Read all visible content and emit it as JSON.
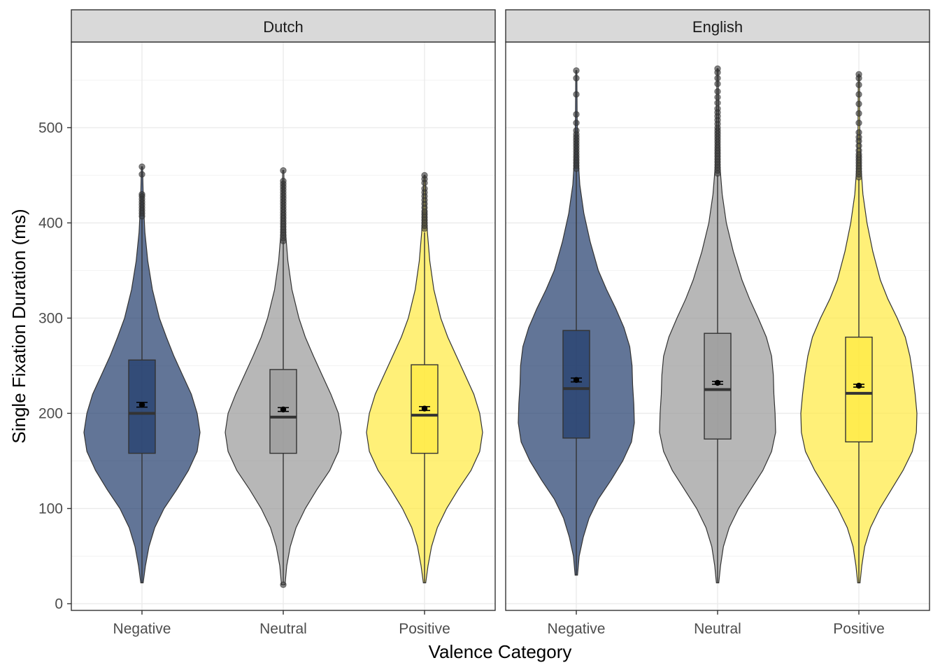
{
  "chart_data": {
    "type": "violin",
    "xlabel": "Valence Category",
    "ylabel": "Single Fixation Duration (ms)",
    "ylim": [
      -7,
      590
    ],
    "yticks": [
      0,
      100,
      200,
      300,
      400,
      500
    ],
    "grid": true,
    "categories": [
      "Negative",
      "Neutral",
      "Positive"
    ],
    "colors": {
      "Negative": "#1f3b6b",
      "Neutral": "#999999",
      "Positive": "#ffe93f"
    },
    "panels": [
      {
        "name": "Dutch",
        "groups": [
          {
            "category": "Negative",
            "min": 22,
            "q1": 158,
            "median": 200,
            "q3": 256,
            "whisker_high": 405,
            "mean": 209,
            "se": 2.5,
            "outliers": [
              407,
              410,
              413,
              416,
              419,
              422,
              425,
              428,
              430,
              451,
              459
            ],
            "violin": [
              [
                22,
                0.02
              ],
              [
                40,
                0.06
              ],
              [
                60,
                0.12
              ],
              [
                80,
                0.22
              ],
              [
                100,
                0.38
              ],
              [
                120,
                0.6
              ],
              [
                140,
                0.8
              ],
              [
                160,
                0.95
              ],
              [
                180,
                1.0
              ],
              [
                200,
                0.95
              ],
              [
                220,
                0.85
              ],
              [
                240,
                0.7
              ],
              [
                260,
                0.55
              ],
              [
                280,
                0.42
              ],
              [
                300,
                0.3
              ],
              [
                330,
                0.18
              ],
              [
                360,
                0.1
              ],
              [
                390,
                0.05
              ],
              [
                420,
                0.025
              ],
              [
                459,
                0.01
              ]
            ]
          },
          {
            "category": "Neutral",
            "min": 22,
            "q1": 158,
            "median": 196,
            "q3": 246,
            "whisker_high": 380,
            "mean": 204,
            "se": 2.0,
            "outliers": [
              20,
              381,
              384,
              387,
              390,
              393,
              396,
              399,
              402,
              405,
              408,
              411,
              414,
              417,
              420,
              423,
              426,
              429,
              432,
              435,
              438,
              441,
              444,
              455
            ],
            "violin": [
              [
                20,
                0.03
              ],
              [
                40,
                0.06
              ],
              [
                60,
                0.12
              ],
              [
                80,
                0.22
              ],
              [
                100,
                0.38
              ],
              [
                120,
                0.58
              ],
              [
                140,
                0.8
              ],
              [
                160,
                0.95
              ],
              [
                180,
                1.0
              ],
              [
                200,
                0.95
              ],
              [
                220,
                0.82
              ],
              [
                240,
                0.67
              ],
              [
                260,
                0.52
              ],
              [
                280,
                0.38
              ],
              [
                300,
                0.27
              ],
              [
                330,
                0.15
              ],
              [
                360,
                0.08
              ],
              [
                390,
                0.04
              ],
              [
                420,
                0.02
              ],
              [
                455,
                0.01
              ]
            ]
          },
          {
            "category": "Positive",
            "min": 22,
            "q1": 158,
            "median": 198,
            "q3": 251,
            "whisker_high": 390,
            "mean": 205,
            "se": 2.0,
            "outliers": [
              394,
              397,
              400,
              403,
              406,
              409,
              412,
              416,
              420,
              424,
              428,
              432,
              436,
              442,
              446,
              450
            ],
            "violin": [
              [
                22,
                0.02
              ],
              [
                40,
                0.06
              ],
              [
                60,
                0.12
              ],
              [
                80,
                0.22
              ],
              [
                100,
                0.38
              ],
              [
                120,
                0.58
              ],
              [
                140,
                0.8
              ],
              [
                160,
                0.95
              ],
              [
                180,
                1.0
              ],
              [
                200,
                0.95
              ],
              [
                220,
                0.85
              ],
              [
                240,
                0.7
              ],
              [
                260,
                0.55
              ],
              [
                280,
                0.4
              ],
              [
                300,
                0.28
              ],
              [
                330,
                0.16
              ],
              [
                360,
                0.09
              ],
              [
                390,
                0.05
              ],
              [
                420,
                0.025
              ],
              [
                450,
                0.01
              ]
            ]
          }
        ]
      },
      {
        "name": "English",
        "groups": [
          {
            "category": "Negative",
            "min": 30,
            "q1": 174,
            "median": 226,
            "q3": 287,
            "whisker_high": 455,
            "mean": 235,
            "se": 2.0,
            "outliers": [
              457,
              460,
              463,
              466,
              469,
              472,
              475,
              478,
              481,
              484,
              487,
              490,
              493,
              497,
              505,
              514,
              535,
              552,
              560
            ],
            "violin": [
              [
                30,
                0.02
              ],
              [
                50,
                0.05
              ],
              [
                70,
                0.12
              ],
              [
                90,
                0.22
              ],
              [
                110,
                0.38
              ],
              [
                130,
                0.6
              ],
              [
                150,
                0.8
              ],
              [
                170,
                0.95
              ],
              [
                190,
                1.0
              ],
              [
                210,
                0.99
              ],
              [
                230,
                0.97
              ],
              [
                250,
                0.96
              ],
              [
                270,
                0.92
              ],
              [
                290,
                0.82
              ],
              [
                310,
                0.68
              ],
              [
                330,
                0.52
              ],
              [
                350,
                0.38
              ],
              [
                380,
                0.24
              ],
              [
                410,
                0.13
              ],
              [
                440,
                0.06
              ],
              [
                470,
                0.03
              ],
              [
                510,
                0.015
              ],
              [
                560,
                0.01
              ]
            ]
          },
          {
            "category": "Neutral",
            "min": 22,
            "q1": 173,
            "median": 225,
            "q3": 284,
            "whisker_high": 450,
            "mean": 232,
            "se": 1.5,
            "outliers": [
              452,
              455,
              458,
              461,
              464,
              467,
              470,
              473,
              476,
              479,
              482,
              485,
              488,
              491,
              494,
              497,
              500,
              504,
              508,
              512,
              516,
              520,
              526,
              532,
              538,
              546,
              552,
              558,
              562
            ],
            "violin": [
              [
                22,
                0.02
              ],
              [
                40,
                0.05
              ],
              [
                60,
                0.1
              ],
              [
                80,
                0.2
              ],
              [
                100,
                0.36
              ],
              [
                120,
                0.57
              ],
              [
                140,
                0.78
              ],
              [
                160,
                0.93
              ],
              [
                180,
                1.0
              ],
              [
                200,
                0.99
              ],
              [
                220,
                0.97
              ],
              [
                240,
                0.96
              ],
              [
                260,
                0.93
              ],
              [
                280,
                0.84
              ],
              [
                300,
                0.7
              ],
              [
                320,
                0.55
              ],
              [
                340,
                0.42
              ],
              [
                370,
                0.27
              ],
              [
                400,
                0.15
              ],
              [
                430,
                0.08
              ],
              [
                460,
                0.04
              ],
              [
                500,
                0.02
              ],
              [
                562,
                0.01
              ]
            ]
          },
          {
            "category": "Positive",
            "min": 22,
            "q1": 170,
            "median": 221,
            "q3": 280,
            "whisker_high": 446,
            "mean": 229,
            "se": 1.5,
            "outliers": [
              448,
              451,
              454,
              457,
              460,
              463,
              466,
              469,
              472,
              476,
              481,
              486,
              490,
              495,
              505,
              515,
              525,
              535,
              545,
              552,
              556
            ],
            "violin": [
              [
                22,
                0.02
              ],
              [
                40,
                0.05
              ],
              [
                60,
                0.1
              ],
              [
                80,
                0.2
              ],
              [
                100,
                0.36
              ],
              [
                120,
                0.56
              ],
              [
                140,
                0.76
              ],
              [
                160,
                0.92
              ],
              [
                180,
                0.99
              ],
              [
                200,
                1.0
              ],
              [
                220,
                0.97
              ],
              [
                240,
                0.93
              ],
              [
                260,
                0.88
              ],
              [
                280,
                0.8
              ],
              [
                300,
                0.66
              ],
              [
                320,
                0.5
              ],
              [
                340,
                0.37
              ],
              [
                370,
                0.24
              ],
              [
                400,
                0.14
              ],
              [
                430,
                0.07
              ],
              [
                460,
                0.035
              ],
              [
                500,
                0.015
              ],
              [
                556,
                0.01
              ]
            ]
          }
        ]
      }
    ]
  }
}
